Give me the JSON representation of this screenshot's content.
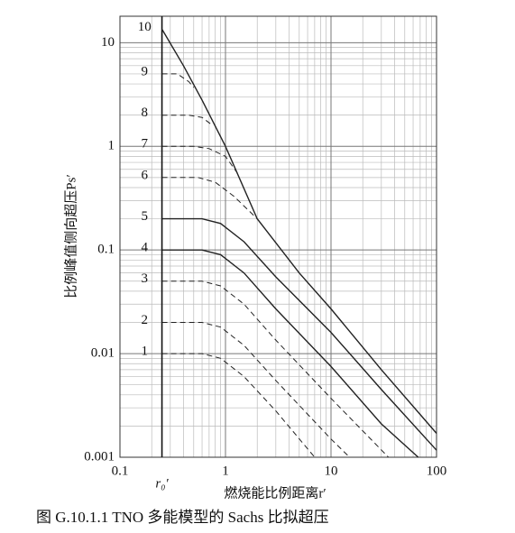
{
  "chart_data": {
    "type": "line",
    "xlabel": "燃烧能比例距离r′",
    "ylabel": "比例峰值侧向超压Ps′",
    "caption": "图 G.10.1.1   TNO 多能模型的 Sachs 比拟超压",
    "log_x": true,
    "log_y": true,
    "grid": true,
    "xlim": [
      0.1,
      100
    ],
    "ylim": [
      0.001,
      18
    ],
    "xticks": [
      0.1,
      1,
      10,
      100
    ],
    "yticks": [
      0.001,
      0.01,
      0.1,
      1,
      10
    ],
    "r0_line": 0.25,
    "r0_label": "r₀′",
    "series": [
      {
        "name": "1",
        "color": "#222",
        "style": "dashed",
        "x": [
          0.25,
          0.6,
          0.9,
          1.5,
          3,
          7
        ],
        "values": [
          0.01,
          0.01,
          0.009,
          0.006,
          0.0028,
          0.001
        ]
      },
      {
        "name": "2",
        "color": "#222",
        "style": "dashed",
        "x": [
          0.25,
          0.6,
          0.9,
          1.5,
          3,
          10,
          15
        ],
        "values": [
          0.02,
          0.02,
          0.018,
          0.012,
          0.0055,
          0.0015,
          0.001
        ]
      },
      {
        "name": "3",
        "color": "#222",
        "style": "dashed",
        "x": [
          0.25,
          0.6,
          0.9,
          1.5,
          3,
          10,
          35
        ],
        "values": [
          0.05,
          0.05,
          0.045,
          0.03,
          0.0135,
          0.0037,
          0.001
        ]
      },
      {
        "name": "4",
        "color": "#222",
        "style": "solid",
        "x": [
          0.25,
          0.6,
          0.9,
          1.5,
          3,
          10,
          30,
          67
        ],
        "values": [
          0.1,
          0.1,
          0.09,
          0.06,
          0.027,
          0.0075,
          0.0021,
          0.001
        ]
      },
      {
        "name": "5",
        "color": "#222",
        "style": "solid",
        "x": [
          0.25,
          0.6,
          0.9,
          1.5,
          3,
          10,
          30,
          100
        ],
        "values": [
          0.2,
          0.2,
          0.18,
          0.12,
          0.055,
          0.016,
          0.0045,
          0.00117
        ]
      },
      {
        "name": "6",
        "color": "#222",
        "style": "dashed",
        "x": [
          0.25,
          0.55,
          0.8,
          1.2,
          2
        ],
        "values": [
          0.5,
          0.5,
          0.45,
          0.33,
          0.2
        ]
      },
      {
        "name": "7",
        "color": "#222",
        "style": "dashed",
        "x": [
          0.25,
          0.5,
          0.7,
          1,
          1.3
        ],
        "values": [
          1,
          1,
          0.95,
          0.8,
          0.55
        ]
      },
      {
        "name": "8",
        "color": "#222",
        "style": "dashed",
        "x": [
          0.25,
          0.45,
          0.6,
          0.75
        ],
        "values": [
          2,
          2,
          1.9,
          1.6
        ]
      },
      {
        "name": "9",
        "color": "#222",
        "style": "dashed",
        "x": [
          0.25,
          0.35,
          0.45,
          0.5
        ],
        "values": [
          5,
          5,
          4.2,
          3.7
        ]
      },
      {
        "name": "10",
        "color": "#222",
        "style": "solid",
        "x": [
          0.25,
          0.4,
          0.6,
          1,
          2,
          5,
          10,
          30,
          100
        ],
        "values": [
          13.5,
          6,
          2.8,
          1,
          0.2,
          0.06,
          0.027,
          0.007,
          0.0017
        ]
      }
    ]
  }
}
